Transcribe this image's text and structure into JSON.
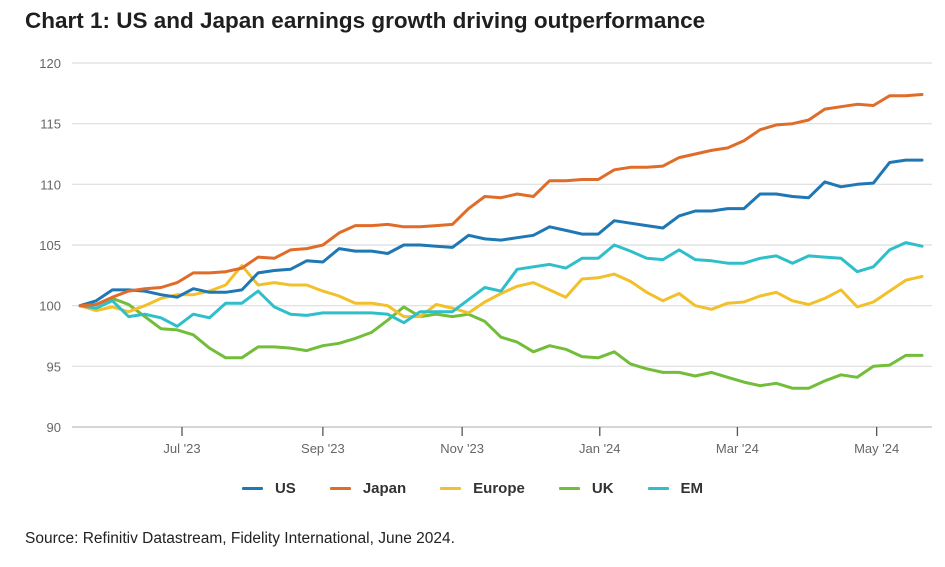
{
  "title": "Chart 1: US and Japan earnings growth driving outperformance",
  "source": "Source: Refinitiv Datastream, Fidelity International, June 2024.",
  "chart_data": {
    "type": "line",
    "title": "Chart 1: US and Japan earnings growth driving outperformance",
    "xlabel": "",
    "ylabel": "",
    "ylim": [
      90,
      120
    ],
    "yticks": [
      90,
      95,
      100,
      105,
      110,
      115,
      120
    ],
    "grid": true,
    "legend_position": "bottom",
    "x_unit": "weeks since late May 2023",
    "xlim": [
      0,
      52
    ],
    "xticks": [
      {
        "pos": 6.3,
        "label": "Jul '23"
      },
      {
        "pos": 15.0,
        "label": "Sep '23"
      },
      {
        "pos": 23.6,
        "label": "Nov '23"
      },
      {
        "pos": 32.1,
        "label": "Jan '24"
      },
      {
        "pos": 40.6,
        "label": "Mar '24"
      },
      {
        "pos": 49.2,
        "label": "May '24"
      }
    ],
    "series": [
      {
        "name": "US",
        "color": "#1f77b4",
        "values": [
          100,
          100.4,
          101.3,
          101.3,
          101.2,
          100.9,
          100.7,
          101.4,
          101.1,
          101.1,
          101.3,
          102.7,
          102.9,
          103.0,
          103.7,
          103.6,
          104.7,
          104.5,
          104.5,
          104.3,
          105.0,
          105.0,
          104.9,
          104.8,
          105.8,
          105.5,
          105.4,
          105.6,
          105.8,
          106.5,
          106.2,
          105.9,
          105.9,
          107.0,
          106.8,
          106.6,
          106.4,
          107.4,
          107.8,
          107.8,
          108.0,
          108.0,
          109.2,
          109.2,
          109.0,
          108.9,
          110.2,
          109.8,
          110.0,
          110.1,
          111.8,
          112.0,
          112.0
        ]
      },
      {
        "name": "Japan",
        "color": "#e06c2a",
        "values": [
          100,
          100.1,
          100.7,
          101.2,
          101.4,
          101.5,
          101.9,
          102.7,
          102.7,
          102.8,
          103.1,
          104.0,
          103.9,
          104.6,
          104.7,
          105.0,
          106.0,
          106.6,
          106.6,
          106.7,
          106.5,
          106.5,
          106.6,
          106.7,
          108.0,
          109.0,
          108.9,
          109.2,
          109.0,
          110.3,
          110.3,
          110.4,
          110.4,
          111.2,
          111.4,
          111.4,
          111.5,
          112.2,
          112.5,
          112.8,
          113.0,
          113.6,
          114.5,
          114.9,
          115.0,
          115.3,
          116.2,
          116.4,
          116.6,
          116.5,
          117.3,
          117.3,
          117.4
        ]
      },
      {
        "name": "Europe",
        "color": "#f2c02a",
        "values": [
          100,
          99.6,
          99.9,
          99.5,
          100.0,
          100.6,
          100.9,
          100.9,
          101.2,
          101.7,
          103.3,
          101.7,
          101.9,
          101.7,
          101.7,
          101.2,
          100.8,
          100.2,
          100.2,
          100.0,
          99.1,
          99.1,
          100.1,
          99.8,
          99.4,
          100.3,
          101.0,
          101.6,
          101.9,
          101.3,
          100.7,
          102.2,
          102.3,
          102.6,
          102.0,
          101.1,
          100.4,
          101.0,
          100.0,
          99.7,
          100.2,
          100.3,
          100.8,
          101.1,
          100.4,
          100.1,
          100.6,
          101.3,
          99.9,
          100.3,
          101.2,
          102.1,
          102.4
        ]
      },
      {
        "name": "UK",
        "color": "#72bd3a",
        "values": [
          100,
          100.1,
          100.6,
          100.1,
          99.1,
          98.1,
          98.0,
          97.6,
          96.5,
          95.7,
          95.7,
          96.6,
          96.6,
          96.5,
          96.3,
          96.7,
          96.9,
          97.3,
          97.8,
          98.8,
          99.9,
          99.1,
          99.3,
          99.1,
          99.3,
          98.7,
          97.4,
          97.0,
          96.2,
          96.7,
          96.4,
          95.8,
          95.7,
          96.2,
          95.2,
          94.8,
          94.5,
          94.5,
          94.2,
          94.5,
          94.1,
          93.7,
          93.4,
          93.6,
          93.2,
          93.2,
          93.8,
          94.3,
          94.1,
          95.0,
          95.1,
          95.9,
          95.9
        ]
      },
      {
        "name": "EM",
        "color": "#2fbfca",
        "values": [
          100,
          99.8,
          100.4,
          99.1,
          99.3,
          99.0,
          98.3,
          99.3,
          99.0,
          100.2,
          100.2,
          101.2,
          99.9,
          99.3,
          99.2,
          99.4,
          99.4,
          99.4,
          99.4,
          99.3,
          98.6,
          99.5,
          99.5,
          99.5,
          100.5,
          101.5,
          101.2,
          103.0,
          103.2,
          103.4,
          103.1,
          103.9,
          103.9,
          105.0,
          104.5,
          103.9,
          103.8,
          104.6,
          103.8,
          103.7,
          103.5,
          103.5,
          103.9,
          104.1,
          103.5,
          104.1,
          104.0,
          103.9,
          102.8,
          103.2,
          104.6,
          105.2,
          104.9
        ]
      }
    ]
  }
}
